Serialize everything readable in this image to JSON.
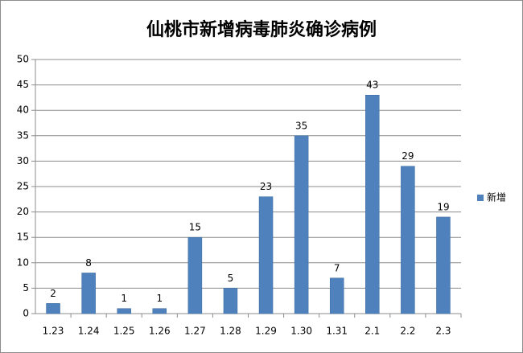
{
  "chart_data": {
    "type": "bar",
    "title": "仙桃市新增病毒肺炎确诊病例",
    "categories": [
      "1.23",
      "1.24",
      "1.25",
      "1.26",
      "1.27",
      "1.28",
      "1.29",
      "1.30",
      "1.31",
      "2.1",
      "2.2",
      "2.3"
    ],
    "series": [
      {
        "name": "新增",
        "color": "#4f81bd",
        "values": [
          2,
          8,
          1,
          1,
          15,
          5,
          23,
          35,
          7,
          43,
          29,
          19
        ]
      }
    ],
    "ylim": [
      0,
      50
    ],
    "yticks": [
      0,
      5,
      10,
      15,
      20,
      25,
      30,
      35,
      40,
      45,
      50
    ],
    "grid": true,
    "legend": "right",
    "data_labels": true
  }
}
